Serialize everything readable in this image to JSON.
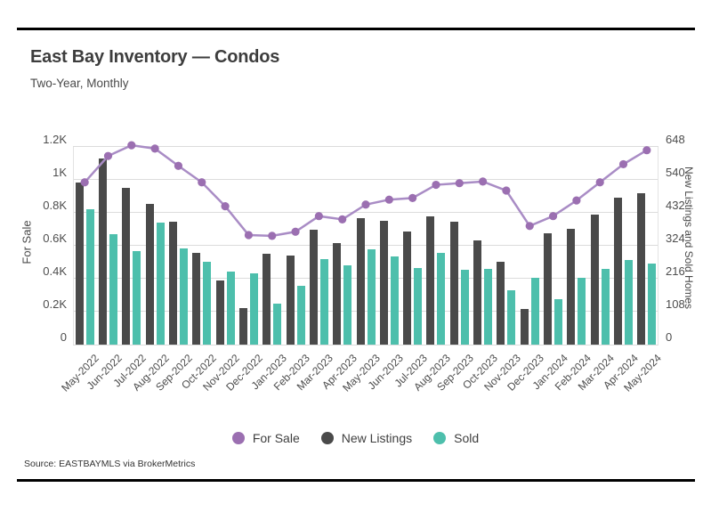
{
  "source": "Source:  EASTBAYMLS via BrokerMetrics",
  "chart_data": {
    "type": "combo-bar-line",
    "title": "East Bay Inventory — Condos",
    "subtitle": "Two-Year, Monthly",
    "categories": [
      "May-2022",
      "Jun-2022",
      "Jul-2022",
      "Aug-2022",
      "Sep-2022",
      "Oct-2022",
      "Nov-2022",
      "Dec-2022",
      "Jan-2023",
      "Feb-2023",
      "Mar-2023",
      "Apr-2023",
      "May-2023",
      "Jun-2023",
      "Jul-2023",
      "Aug-2023",
      "Sep-2023",
      "Oct-2023",
      "Nov-2023",
      "Dec-2023",
      "Jan-2024",
      "Feb-2024",
      "Mar-2024",
      "Apr-2024",
      "May-2024"
    ],
    "series": [
      {
        "name": "For Sale",
        "type": "line",
        "axis": "left",
        "color": "#9b6fb1",
        "line_color": "#a98cc5",
        "values": [
          985,
          1145,
          1210,
          1190,
          1085,
          985,
          840,
          665,
          660,
          685,
          780,
          760,
          850,
          880,
          890,
          970,
          980,
          990,
          935,
          720,
          780,
          875,
          985,
          1095,
          1180
        ]
      },
      {
        "name": "New Listings",
        "type": "bar",
        "axis": "right",
        "color": "#4a4a4a",
        "values": [
          530,
          610,
          515,
          460,
          403,
          300,
          209,
          120,
          298,
          293,
          376,
          332,
          414,
          406,
          370,
          420,
          403,
          342,
          272,
          118,
          365,
          380,
          427,
          483,
          497
        ]
      },
      {
        "name": "Sold",
        "type": "bar",
        "axis": "right",
        "color": "#4dbfac",
        "values": [
          445,
          363,
          306,
          400,
          314,
          272,
          240,
          233,
          135,
          192,
          280,
          261,
          312,
          288,
          252,
          301,
          245,
          248,
          179,
          218,
          149,
          220,
          248,
          278,
          265
        ]
      }
    ],
    "left_axis": {
      "label": "For Sale",
      "min": 0,
      "max": 1200,
      "ticks": [
        "0",
        "0.2K",
        "0.4K",
        "0.6K",
        "0.8K",
        "1K",
        "1.2K"
      ]
    },
    "right_axis": {
      "label": "New Listings and Sold Homes",
      "min": 0,
      "max": 648,
      "ticks": [
        "0",
        "108",
        "216",
        "324",
        "432",
        "540",
        "648"
      ]
    },
    "grid": true,
    "legend_position": "bottom"
  }
}
